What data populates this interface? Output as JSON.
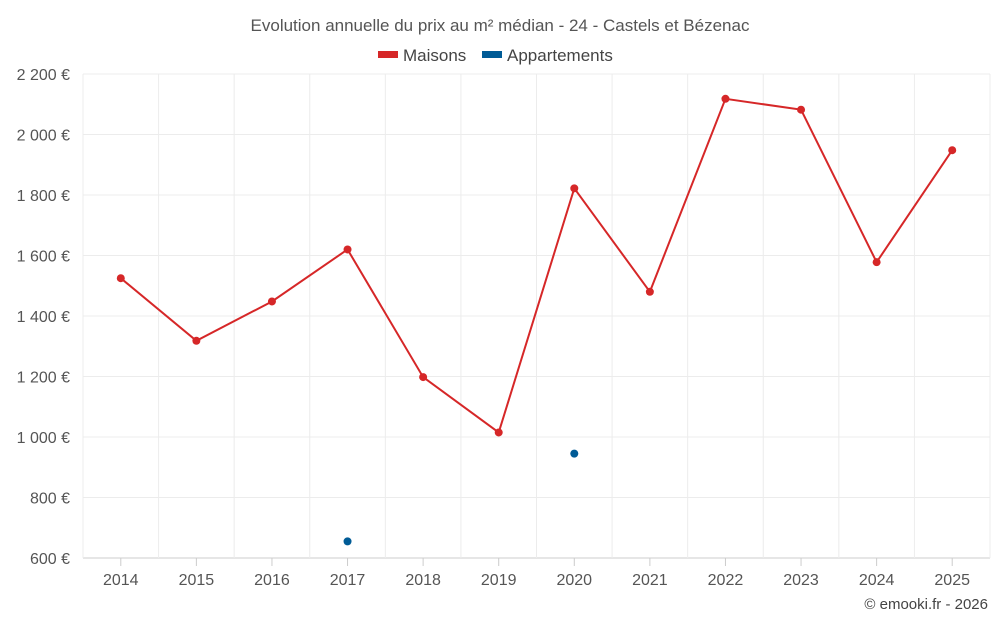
{
  "chart_data": {
    "type": "line",
    "title": "Evolution annuelle du prix au m² médian - 24 - Castels et Bézenac",
    "xlabel": "",
    "ylabel": "",
    "categories": [
      "2014",
      "2015",
      "2016",
      "2017",
      "2018",
      "2019",
      "2020",
      "2021",
      "2022",
      "2023",
      "2024",
      "2025"
    ],
    "ylim": [
      600,
      2200
    ],
    "yticks": [
      600,
      800,
      1000,
      1200,
      1400,
      1600,
      1800,
      2000,
      2200
    ],
    "ytick_labels": [
      "600 €",
      "800 €",
      "1 000 €",
      "1 200 €",
      "1 400 €",
      "1 600 €",
      "1 800 €",
      "2 000 €",
      "2 200 €"
    ],
    "grid": true,
    "legend_position": "top-center",
    "series": [
      {
        "name": "Maisons",
        "color": "#d62728",
        "values": [
          1525,
          1318,
          1448,
          1620,
          1198,
          1015,
          1822,
          1480,
          2118,
          2082,
          1578,
          1948
        ],
        "connected": true
      },
      {
        "name": "Appartements",
        "color": "#005b96",
        "values": [
          null,
          null,
          null,
          655,
          null,
          null,
          945,
          null,
          null,
          null,
          null,
          null
        ],
        "connected": false
      }
    ],
    "credit": "© emooki.fr - 2026"
  }
}
